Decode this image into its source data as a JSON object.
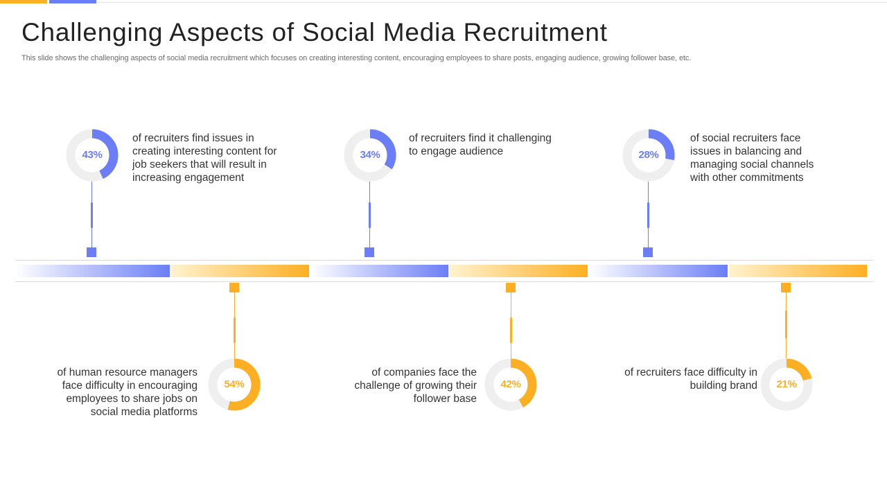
{
  "title": "Challenging Aspects of Social Media Recruitment",
  "subtitle": "This slide shows the challenging aspects of social media recruitment which focuses on creating interesting content, encouraging employees to share posts, engaging audience, growing follower base, etc.",
  "colors": {
    "purple": "#6b7ef5",
    "orange": "#fdaf24",
    "ring_track": "#efefef",
    "text": "#333333"
  },
  "stats_top": [
    {
      "value": 43,
      "label": "43%",
      "text": "of recruiters find issues in creating interesting content for job seekers that will result in increasing engagement"
    },
    {
      "value": 34,
      "label": "34%",
      "text": "of recruiters find it challenging to engage audience"
    },
    {
      "value": 28,
      "label": "28%",
      "text": "of social recruiters face issues in balancing and managing social channels with other commitments"
    }
  ],
  "stats_bottom": [
    {
      "value": 54,
      "label": "54%",
      "text": "of human resource managers face difficulty in encouraging employees to share jobs on social media platforms"
    },
    {
      "value": 42,
      "label": "42%",
      "text": "of companies face the challenge of growing their follower base"
    },
    {
      "value": 21,
      "label": "21%",
      "text": "of recruiters face difficulty in building brand"
    }
  ]
}
